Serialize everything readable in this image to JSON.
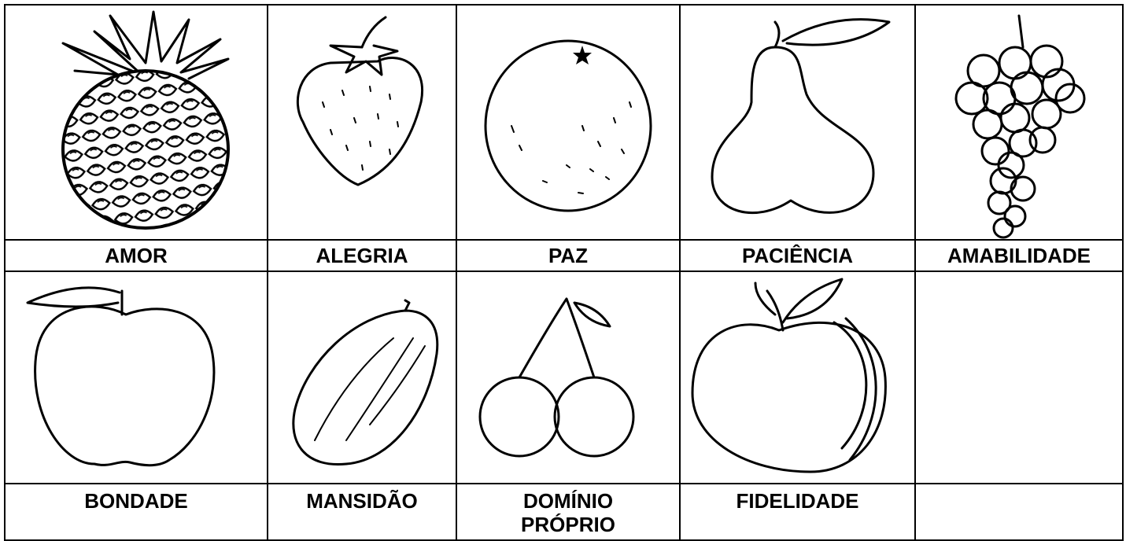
{
  "table": {
    "rows": [
      [
        "AMOR",
        "ALEGRIA",
        "PAZ",
        "PACIÊNCIA",
        "AMABILIDADE"
      ],
      [
        "BONDADE",
        "MANSIDÃO",
        "DOMÍNIO PRÓPRIO",
        "FIDELIDADE"
      ]
    ]
  }
}
